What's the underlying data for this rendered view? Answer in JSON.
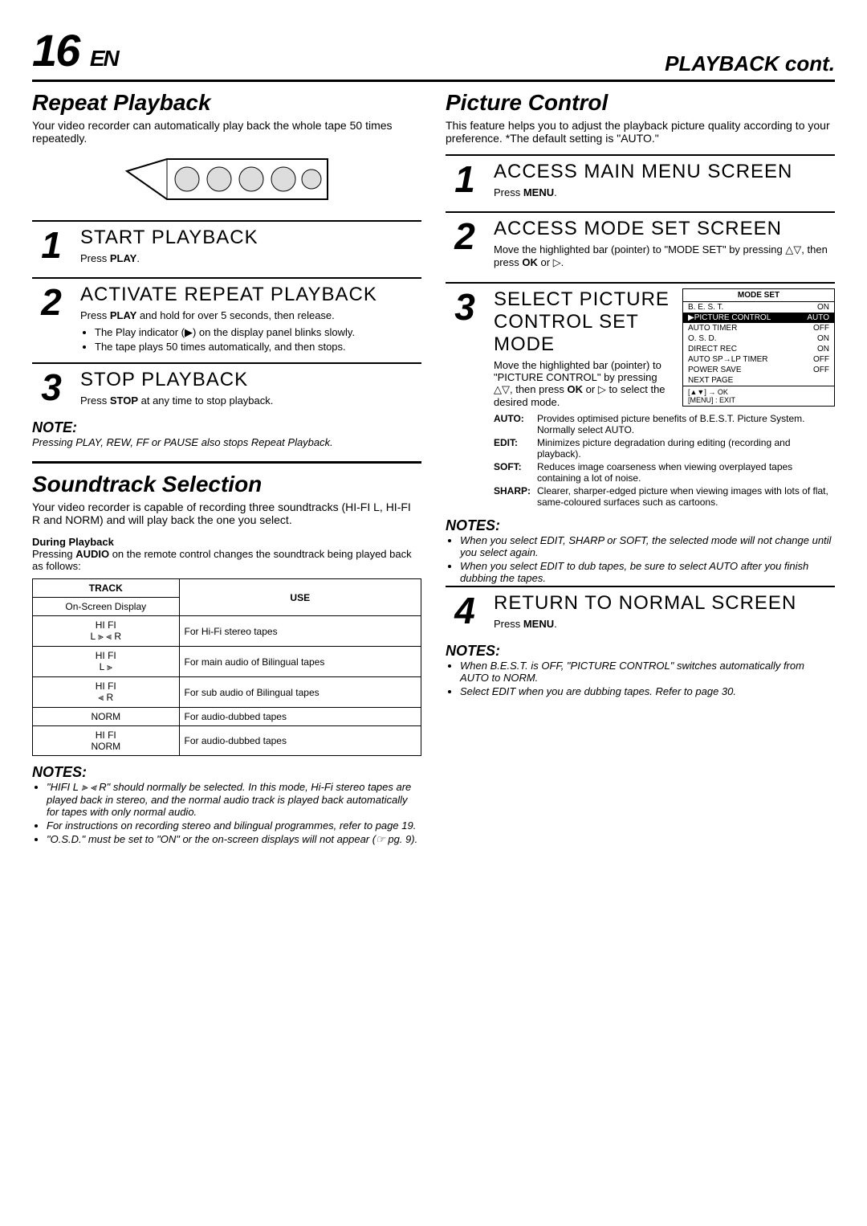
{
  "header": {
    "page": "16",
    "lang": "EN",
    "title": "PLAYBACK cont."
  },
  "left": {
    "repeat": {
      "title": "Repeat Playback",
      "desc": "Your video recorder can automatically play back the whole tape 50 times repeatedly.",
      "steps": [
        {
          "num": "1",
          "title": "START PLAYBACK",
          "instr_prefix": "Press ",
          "instr_bold": "PLAY",
          "instr_suffix": "."
        },
        {
          "num": "2",
          "title": "ACTIVATE REPEAT PLAYBACK",
          "instr_prefix": "Press ",
          "instr_bold": "PLAY",
          "instr_suffix": " and hold for over 5 seconds, then release.",
          "bullets": [
            "The Play indicator (▶) on the display panel blinks slowly.",
            "The tape plays 50 times automatically, and then stops."
          ]
        },
        {
          "num": "3",
          "title": "STOP PLAYBACK",
          "instr_prefix": "Press ",
          "instr_bold": "STOP",
          "instr_suffix": " at any time to stop playback."
        }
      ],
      "note_title": "NOTE:",
      "note_body": "Pressing PLAY, REW, FF or PAUSE also stops Repeat Playback."
    },
    "soundtrack": {
      "title": "Soundtrack Selection",
      "desc": "Your video recorder is capable of recording three soundtracks (HI-FI L, HI-FI R and NORM) and will play back the one you select.",
      "subhead": "During Playback",
      "subdesc_prefix": "Pressing ",
      "subdesc_bold": "AUDIO",
      "subdesc_suffix": " on the remote control changes the soundtrack being played back as follows:",
      "table": {
        "header1": "TRACK",
        "header1b": "On-Screen Display",
        "header2": "USE",
        "rows": [
          {
            "track": "HI FI\nL ⫸ ⫷ R",
            "use": "For Hi-Fi stereo tapes"
          },
          {
            "track": "HI FI\nL ⫸",
            "use": "For main audio of Bilingual tapes"
          },
          {
            "track": "HI FI\n⫷ R",
            "use": "For sub audio of Bilingual tapes"
          },
          {
            "track": "NORM",
            "use": "For audio-dubbed tapes"
          },
          {
            "track": "HI FI\nNORM",
            "use": "For audio-dubbed tapes"
          }
        ]
      },
      "notes_title": "NOTES:",
      "notes": [
        "\"HIFI L ⫸ ⫷ R\" should normally be selected. In this mode, Hi-Fi stereo tapes are played back in stereo, and the normal audio track is played back automatically for tapes with only normal audio.",
        "For instructions on recording stereo and bilingual programmes, refer to page 19.",
        "\"O.S.D.\" must be set to \"ON\" or the on-screen displays will not appear (☞ pg. 9)."
      ]
    }
  },
  "right": {
    "picture": {
      "title": "Picture Control",
      "desc": "This feature helps you to adjust the playback picture quality according to your preference. *The default setting is \"AUTO.\"",
      "steps": [
        {
          "num": "1",
          "title": "ACCESS MAIN MENU SCREEN",
          "instr_prefix": "Press ",
          "instr_bold": "MENU",
          "instr_suffix": "."
        },
        {
          "num": "2",
          "title": "ACCESS MODE SET SCREEN",
          "instr_html": "Move the highlighted bar (pointer) to \"MODE SET\" by pressing △▽, then press <b>OK</b> or ▷."
        },
        {
          "num": "3",
          "title": "SELECT PICTURE CONTROL SET MODE",
          "instr_html": "Move the highlighted bar (pointer) to \"PICTURE CONTROL\" by pressing △▽, then press <b>OK</b> or ▷ to select the desired mode.",
          "mode_set": {
            "title": "MODE SET",
            "rows": [
              {
                "label": "B. E. S. T.",
                "val": "ON",
                "hl": false
              },
              {
                "label": "▶PICTURE CONTROL",
                "val": "AUTO",
                "hl": true
              },
              {
                "label": "AUTO TIMER",
                "val": "OFF",
                "hl": false
              },
              {
                "label": "O. S. D.",
                "val": "ON",
                "hl": false
              },
              {
                "label": "DIRECT REC",
                "val": "ON",
                "hl": false
              },
              {
                "label": "AUTO SP→LP TIMER",
                "val": "OFF",
                "hl": false
              },
              {
                "label": "POWER SAVE",
                "val": "OFF",
                "hl": false
              },
              {
                "label": "NEXT PAGE",
                "val": "",
                "hl": false
              }
            ],
            "footer1": "[▲▼] → OK",
            "footer2": "[MENU] : EXIT"
          },
          "defs": [
            {
              "label": "AUTO:",
              "text": "Provides optimised picture benefits of B.E.S.T. Picture System. Normally select AUTO."
            },
            {
              "label": "EDIT:",
              "text": "Minimizes picture degradation during editing (recording and playback)."
            },
            {
              "label": "SOFT:",
              "text": "Reduces image coarseness when viewing overplayed tapes containing a lot of noise."
            },
            {
              "label": "SHARP:",
              "text": "Clearer, sharper-edged picture when viewing images with lots of flat, same-coloured surfaces such as cartoons."
            }
          ]
        },
        {
          "num": "4",
          "title": "RETURN TO NORMAL SCREEN",
          "instr_prefix": "Press ",
          "instr_bold": "MENU",
          "instr_suffix": "."
        }
      ],
      "notes1_title": "NOTES:",
      "notes1": [
        "When you select EDIT, SHARP or SOFT, the selected mode will not change until you select again.",
        "When you select EDIT to dub tapes, be sure to select AUTO after you finish dubbing the tapes."
      ],
      "notes2_title": "NOTES:",
      "notes2": [
        "When B.E.S.T. is OFF, \"PICTURE CONTROL\" switches automatically from AUTO to NORM.",
        "Select EDIT when you are dubbing tapes. Refer to page 30."
      ]
    }
  }
}
